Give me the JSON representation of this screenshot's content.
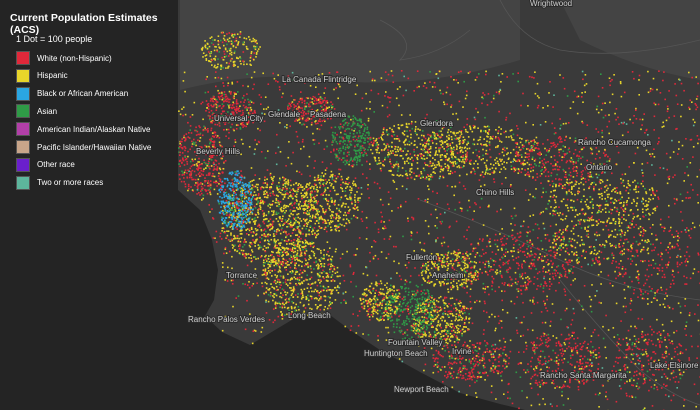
{
  "legend": {
    "title": "Current Population Estimates (ACS)",
    "subtitle": "1 Dot = 100 people",
    "items": [
      {
        "label": "White (non-Hispanic)",
        "color": "#e0283a"
      },
      {
        "label": "Hispanic",
        "color": "#e8d52a"
      },
      {
        "label": "Black or African American",
        "color": "#2aa6e2"
      },
      {
        "label": "Asian",
        "color": "#2f9b47"
      },
      {
        "label": "American Indian/Alaskan Native",
        "color": "#b23fa8"
      },
      {
        "label": "Pacific Islander/Hawaiian Native",
        "color": "#c8a58a"
      },
      {
        "label": "Other race",
        "color": "#6a1fcc"
      },
      {
        "label": "Two or more races",
        "color": "#5db59c"
      }
    ]
  },
  "places": [
    {
      "label": "Wrightwood"
    },
    {
      "label": "La Canada Flintridge"
    },
    {
      "label": "Glendale"
    },
    {
      "label": "Pasadena"
    },
    {
      "label": "Universal City"
    },
    {
      "label": "Glendora"
    },
    {
      "label": "Beverly Hills"
    },
    {
      "label": "Rancho Cucamonga"
    },
    {
      "label": "Ontario"
    },
    {
      "label": "Chino Hills"
    },
    {
      "label": "Torrance"
    },
    {
      "label": "Rancho Palos Verdes"
    },
    {
      "label": "Long Beach"
    },
    {
      "label": "Fullerton"
    },
    {
      "label": "Anaheim"
    },
    {
      "label": "Irvine"
    },
    {
      "label": "Huntington Beach"
    },
    {
      "label": "Fountain Valley"
    },
    {
      "label": "Newport Beach"
    },
    {
      "label": "Rancho Santa Margarita"
    },
    {
      "label": "Lake Elsinore"
    }
  ]
}
